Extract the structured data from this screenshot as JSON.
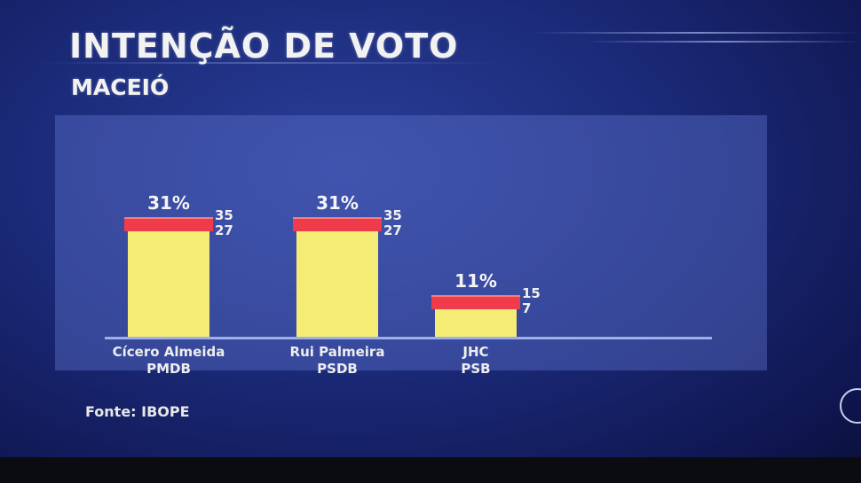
{
  "title": "INTENÇÃO DE VOTO",
  "subtitle": "MACEIÓ",
  "source": "Fonte: IBOPE",
  "colors": {
    "bar": "#f5ec76",
    "cap": "#ef3b4a",
    "background": "#1b2a78"
  },
  "chart_data": {
    "type": "bar",
    "categories": [
      "Cícero Almeida",
      "Rui Palmeira",
      "JHC"
    ],
    "parties": [
      "PMDB",
      "PSDB",
      "PSB"
    ],
    "values": [
      31,
      31,
      11
    ],
    "value_labels": [
      "31%",
      "31%",
      "11%"
    ],
    "upper": [
      35,
      35,
      15
    ],
    "lower": [
      27,
      27,
      7
    ],
    "ylim": [
      0,
      35
    ],
    "legend": "none",
    "grid": false
  }
}
